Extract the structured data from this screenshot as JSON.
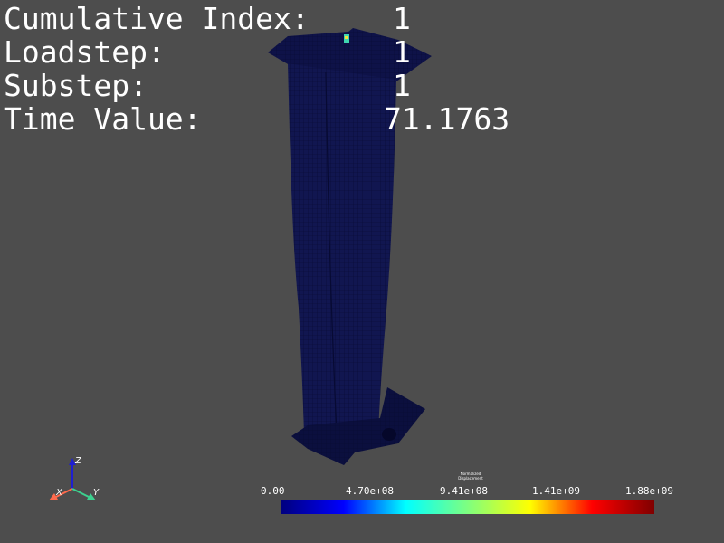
{
  "overlay": {
    "rows": [
      {
        "label": "Cumulative Index:",
        "value": "1"
      },
      {
        "label": "Loadstep:",
        "value": "1"
      },
      {
        "label": "Substep:",
        "value": "1"
      },
      {
        "label": "Time Value:",
        "value": "71.1763"
      }
    ]
  },
  "axes_widget": {
    "z_label": "Z",
    "x_label": "X",
    "y_label": "Y",
    "colors": {
      "z": "#1f1fd0",
      "x": "#ff6a4d",
      "y": "#3cd18f"
    }
  },
  "scalar_bar": {
    "title_line1": "Normalized",
    "title_line2": "Displacement",
    "ticks": [
      "0.00",
      "4.70e+08",
      "9.41e+08",
      "1.41e+09",
      "1.88e+09"
    ],
    "colors": [
      "#00007f",
      "#0000ff",
      "#00ffff",
      "#7fff7f",
      "#ffff00",
      "#ff0000",
      "#7f0000"
    ]
  },
  "model": {
    "mesh_color": "#0e1248",
    "background": "#4d4d4d"
  }
}
